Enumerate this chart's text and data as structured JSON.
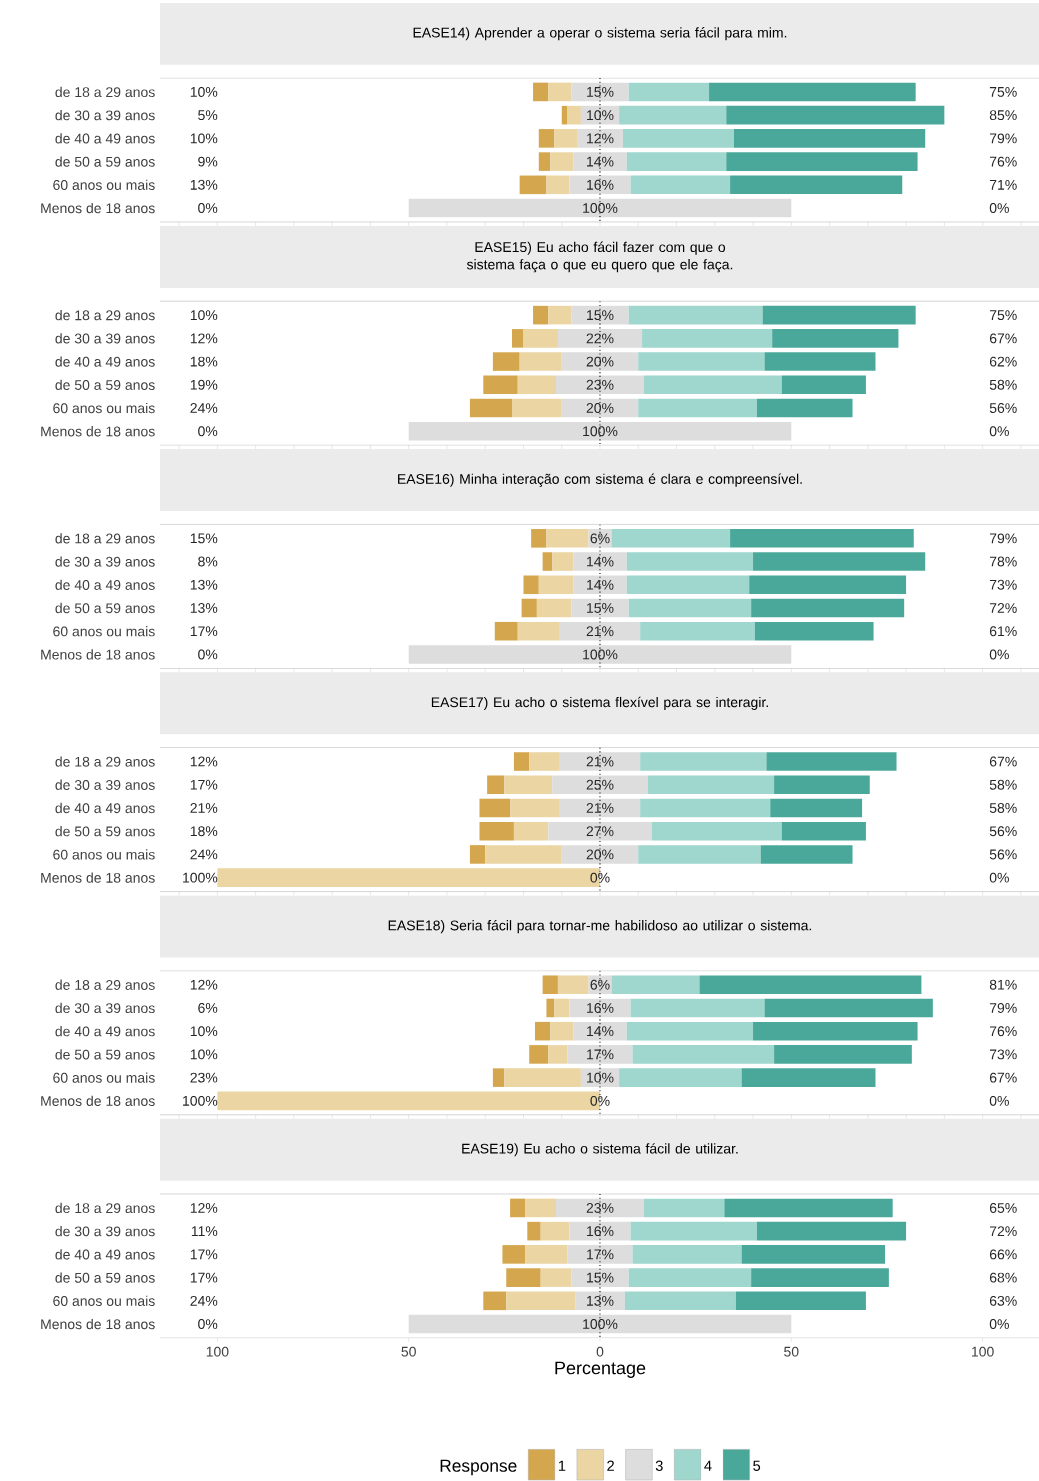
{
  "chart_data": [
    {
      "type": "bar",
      "orientation": "horizontal",
      "title": "EASE14) Aprender a operar o sistema seria fácil para mim.",
      "categories": [
        "de 18 a 29 anos",
        "de 30 a 39 anos",
        "de 40 a 49 anos",
        "de 50 a 59 anos",
        "60 anos ou mais",
        "Menos de 18 anos"
      ],
      "xlim": [
        -115,
        115
      ],
      "tick_labels": "y",
      "ref_lines": [
        {
          "axis": "x",
          "value": 0,
          "line_style": "dotted",
          "color": "#000000"
        }
      ],
      "series": [
        {
          "color": "#d4a74f",
          "values": [
            4,
            1.5,
            4,
            3,
            7,
            0
          ],
          "base": [
            -17.5,
            -10,
            -16,
            -16,
            -21,
            null
          ]
        },
        {
          "color": "#ead5a3",
          "values": [
            6,
            3.5,
            6,
            6,
            6,
            0
          ],
          "base": [
            -13.5,
            -8.5,
            -12,
            -13,
            -14,
            null
          ]
        },
        {
          "color": "#dddddd",
          "values": [
            15,
            10,
            12,
            14,
            16,
            100
          ],
          "base": [
            -7.5,
            -5,
            -6,
            -7,
            -8,
            -50
          ]
        },
        {
          "color": "#9fd6cd",
          "values": [
            21,
            28,
            29,
            26,
            26,
            0
          ],
          "base": [
            7.5,
            5,
            6,
            7,
            8,
            null
          ]
        },
        {
          "color": "#4aa89a",
          "values": [
            54,
            57,
            50,
            50,
            45,
            0
          ],
          "base": [
            28.5,
            33,
            35,
            33,
            34,
            null
          ]
        }
      ],
      "annotations": [
        "10%",
        "15%",
        "75%",
        "5%",
        "10%",
        "85%",
        "10%",
        "12%",
        "79%",
        "9%",
        "14%",
        "76%",
        "13%",
        "16%",
        "71%",
        "0%",
        "100%",
        "0%"
      ]
    },
    {
      "type": "bar",
      "orientation": "horizontal",
      "title": "EASE15) Eu acho fácil fazer com que o sistema faça o que eu quero que ele faça.",
      "categories": [
        "de 18 a 29 anos",
        "de 30 a 39 anos",
        "de 40 a 49 anos",
        "de 50 a 59 anos",
        "60 anos ou mais",
        "Menos de 18 anos"
      ],
      "xlim": [
        -115,
        115
      ],
      "tick_labels": "y",
      "ref_lines": [
        {
          "axis": "x",
          "value": 0,
          "line_style": "dotted",
          "color": "#000000"
        }
      ],
      "series": [
        {
          "color": "#d4a74f",
          "values": [
            4,
            3,
            7,
            9,
            11,
            0
          ],
          "base": [
            -17.5,
            -23,
            -28,
            -30.5,
            -34,
            null
          ]
        },
        {
          "color": "#ead5a3",
          "values": [
            6,
            9,
            11,
            10,
            13,
            0
          ],
          "base": [
            -13.5,
            -20,
            -21,
            -21.5,
            -23,
            null
          ]
        },
        {
          "color": "#dddddd",
          "values": [
            15,
            22,
            20,
            23,
            20,
            100
          ],
          "base": [
            -7.5,
            -11,
            -10,
            -11.5,
            -10,
            -50
          ]
        },
        {
          "color": "#9fd6cd",
          "values": [
            35,
            34,
            33,
            36,
            31,
            0
          ],
          "base": [
            7.5,
            11,
            10,
            11.5,
            10,
            null
          ]
        },
        {
          "color": "#4aa89a",
          "values": [
            40,
            33,
            29,
            22,
            25,
            0
          ],
          "base": [
            42.5,
            45,
            43,
            47.5,
            41,
            null
          ]
        }
      ],
      "annotations": [
        "10%",
        "15%",
        "75%",
        "12%",
        "22%",
        "67%",
        "18%",
        "20%",
        "62%",
        "19%",
        "23%",
        "58%",
        "24%",
        "20%",
        "56%",
        "0%",
        "100%",
        "0%"
      ]
    },
    {
      "type": "bar",
      "orientation": "horizontal",
      "title": "EASE16) Minha interação com sistema é clara e compreensível.",
      "categories": [
        "de 18 a 29 anos",
        "de 30 a 39 anos",
        "de 40 a 49 anos",
        "de 50 a 59 anos",
        "60 anos ou mais",
        "Menos de 18 anos"
      ],
      "xlim": [
        -115,
        115
      ],
      "tick_labels": "y",
      "ref_lines": [
        {
          "axis": "x",
          "value": 0,
          "line_style": "dotted",
          "color": "#000000"
        }
      ],
      "series": [
        {
          "color": "#d4a74f",
          "values": [
            4,
            2.5,
            4,
            4,
            6,
            0
          ],
          "base": [
            -18,
            -15,
            -20,
            -20.5,
            -27.5,
            null
          ]
        },
        {
          "color": "#ead5a3",
          "values": [
            11,
            5.5,
            9,
            9,
            11,
            0
          ],
          "base": [
            -14,
            -12.5,
            -16,
            -16.5,
            -21.5,
            null
          ]
        },
        {
          "color": "#dddddd",
          "values": [
            6,
            14,
            14,
            15,
            21,
            100
          ],
          "base": [
            -3,
            -7,
            -7,
            -7.5,
            -10.5,
            -50
          ]
        },
        {
          "color": "#9fd6cd",
          "values": [
            31,
            33,
            32,
            32,
            30,
            0
          ],
          "base": [
            3,
            7,
            7,
            7.5,
            10.5,
            null
          ]
        },
        {
          "color": "#4aa89a",
          "values": [
            48,
            45,
            41,
            40,
            31,
            0
          ],
          "base": [
            34,
            40,
            39,
            39.5,
            40.5,
            null
          ]
        }
      ],
      "annotations": [
        "15%",
        "6%",
        "79%",
        "8%",
        "14%",
        "78%",
        "13%",
        "14%",
        "73%",
        "13%",
        "15%",
        "72%",
        "17%",
        "21%",
        "61%",
        "0%",
        "100%",
        "0%"
      ]
    },
    {
      "type": "bar",
      "orientation": "horizontal",
      "title": "EASE17) Eu acho o sistema flexível para se interagir.",
      "categories": [
        "de 18 a 29 anos",
        "de 30 a 39 anos",
        "de 40 a 49 anos",
        "de 50 a 59 anos",
        "60 anos ou mais",
        "Menos de 18 anos"
      ],
      "xlim": [
        -115,
        115
      ],
      "tick_labels": "y",
      "ref_lines": [
        {
          "axis": "x",
          "value": 0,
          "line_style": "dotted",
          "color": "#000000"
        }
      ],
      "series": [
        {
          "color": "#d4a74f",
          "values": [
            4,
            4.5,
            8,
            9,
            4,
            0
          ],
          "base": [
            -22.5,
            -29.5,
            -31.5,
            -31.5,
            -34,
            null
          ]
        },
        {
          "color": "#ead5a3",
          "values": [
            8,
            12.5,
            13,
            9,
            20,
            100
          ],
          "base": [
            -18.5,
            -25,
            -23.5,
            -22.5,
            -30,
            -100
          ]
        },
        {
          "color": "#dddddd",
          "values": [
            21,
            25,
            21,
            27,
            20,
            0
          ],
          "base": [
            -10.5,
            -12.5,
            -10.5,
            -13.5,
            -10,
            null
          ]
        },
        {
          "color": "#9fd6cd",
          "values": [
            33,
            33,
            34,
            34,
            32,
            0
          ],
          "base": [
            10.5,
            12.5,
            10.5,
            13.5,
            10,
            null
          ]
        },
        {
          "color": "#4aa89a",
          "values": [
            34,
            25,
            24,
            22,
            24,
            0
          ],
          "base": [
            43.5,
            45.5,
            44.5,
            47.5,
            42,
            null
          ]
        }
      ],
      "annotations": [
        "12%",
        "21%",
        "67%",
        "17%",
        "25%",
        "58%",
        "21%",
        "21%",
        "58%",
        "18%",
        "27%",
        "56%",
        "24%",
        "20%",
        "56%",
        "100%",
        "0%",
        "0%"
      ]
    },
    {
      "type": "bar",
      "orientation": "horizontal",
      "title": "EASE18) Seria fácil para tornar-me habilidoso ao utilizar o sistema.",
      "categories": [
        "de 18 a 29 anos",
        "de 30 a 39 anos",
        "de 40 a 49 anos",
        "de 50 a 59 anos",
        "60 anos ou mais",
        "Menos de 18 anos"
      ],
      "xlim": [
        -115,
        115
      ],
      "tick_labels": "y",
      "ref_lines": [
        {
          "axis": "x",
          "value": 0,
          "line_style": "dotted",
          "color": "#000000"
        }
      ],
      "series": [
        {
          "color": "#d4a74f",
          "values": [
            4,
            2,
            4,
            5,
            3,
            0
          ],
          "base": [
            -15,
            -14,
            -17,
            -18.5,
            -28,
            null
          ]
        },
        {
          "color": "#ead5a3",
          "values": [
            8,
            4,
            6,
            5,
            20,
            100
          ],
          "base": [
            -11,
            -12,
            -13,
            -13.5,
            -25,
            -100
          ]
        },
        {
          "color": "#dddddd",
          "values": [
            6,
            16,
            14,
            17,
            10,
            0
          ],
          "base": [
            -3,
            -8,
            -7,
            -8.5,
            -5,
            null
          ]
        },
        {
          "color": "#9fd6cd",
          "values": [
            23,
            35,
            33,
            37,
            32,
            0
          ],
          "base": [
            3,
            8,
            7,
            8.5,
            5,
            null
          ]
        },
        {
          "color": "#4aa89a",
          "values": [
            58,
            44,
            43,
            36,
            35,
            0
          ],
          "base": [
            26,
            43,
            40,
            45.5,
            37,
            null
          ]
        }
      ],
      "annotations": [
        "12%",
        "6%",
        "81%",
        "6%",
        "16%",
        "79%",
        "10%",
        "14%",
        "76%",
        "10%",
        "17%",
        "73%",
        "23%",
        "10%",
        "67%",
        "100%",
        "0%",
        "0%"
      ]
    },
    {
      "type": "bar",
      "orientation": "horizontal",
      "title": "EASE19) Eu acho o sistema fácil de utilizar.",
      "categories": [
        "de 18 a 29 anos",
        "de 30 a 39 anos",
        "de 40 a 49 anos",
        "de 50 a 59 anos",
        "60 anos ou mais",
        "Menos de 18 anos"
      ],
      "xlim": [
        -115,
        115
      ],
      "xticks": [
        {
          "value": -100,
          "label": "100"
        },
        {
          "value": -50,
          "label": "50"
        },
        0,
        50,
        100
      ],
      "xlabel": "Percentage",
      "legend": "bottom",
      "legend_title": "Response",
      "ref_lines": [
        {
          "axis": "x",
          "value": 0,
          "line_style": "dotted",
          "color": "#000000"
        }
      ],
      "series": [
        {
          "name": "1",
          "color": "#d4a74f",
          "values": [
            4,
            3.5,
            6,
            9,
            6,
            0
          ],
          "base": [
            -23.5,
            -19,
            -25.5,
            -24.5,
            -30.5,
            null
          ]
        },
        {
          "name": "2",
          "color": "#ead5a3",
          "values": [
            8,
            7.5,
            11,
            8,
            18,
            0
          ],
          "base": [
            -19.5,
            -15.5,
            -19.5,
            -15.5,
            -24.5,
            null
          ]
        },
        {
          "name": "3",
          "color": "#dddddd",
          "values": [
            23,
            16,
            17,
            15,
            13,
            100
          ],
          "base": [
            -11.5,
            -8,
            -8.5,
            -7.5,
            -6.5,
            -50
          ]
        },
        {
          "name": "4",
          "color": "#9fd6cd",
          "values": [
            21,
            33,
            28.5,
            32,
            29,
            0
          ],
          "base": [
            11.5,
            8,
            8.5,
            7.5,
            6.5,
            null
          ]
        },
        {
          "name": "5",
          "color": "#4aa89a",
          "values": [
            44,
            39,
            37.5,
            36,
            34,
            0
          ],
          "base": [
            32.5,
            41,
            37,
            39.5,
            35.5,
            null
          ]
        }
      ],
      "annotations": [
        "12%",
        "23%",
        "65%",
        "11%",
        "16%",
        "72%",
        "17%",
        "17%",
        "66%",
        "17%",
        "15%",
        "68%",
        "24%",
        "13%",
        "63%",
        "0%",
        "100%",
        "0%"
      ]
    }
  ]
}
